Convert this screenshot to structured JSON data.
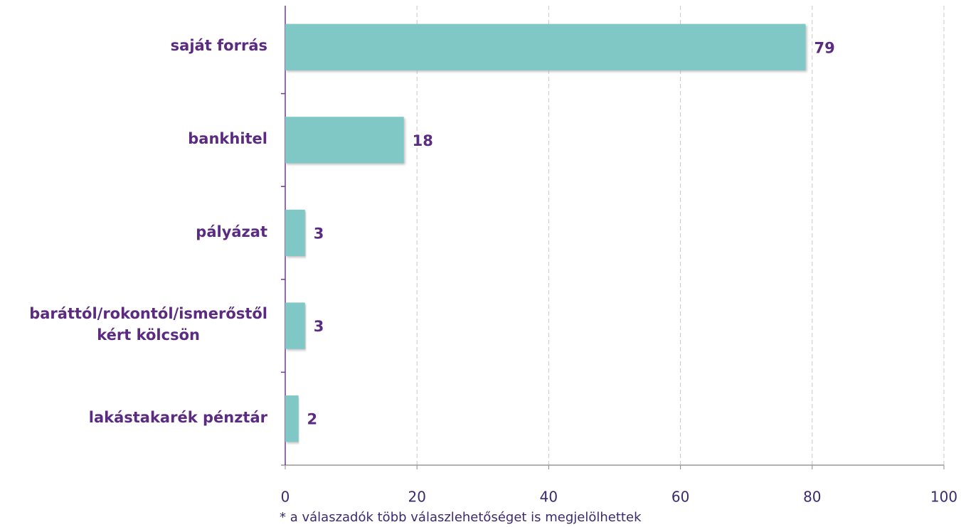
{
  "chart_data": {
    "type": "bar",
    "orientation": "horizontal",
    "categories": [
      "saját forrás",
      "bankhitel",
      "pályázat",
      "baráttól/rokontól/ismerőstől\nkért kölcsön",
      "lakástakarék pénztár"
    ],
    "values": [
      79,
      18,
      3,
      3,
      2
    ],
    "color": "#80c8c6",
    "xlim": [
      0,
      100
    ],
    "xticks": [
      0,
      20,
      40,
      60,
      80,
      100
    ],
    "grid": true,
    "footnote": "* a válaszadók több válaszlehetőséget is megjelölhettek"
  }
}
